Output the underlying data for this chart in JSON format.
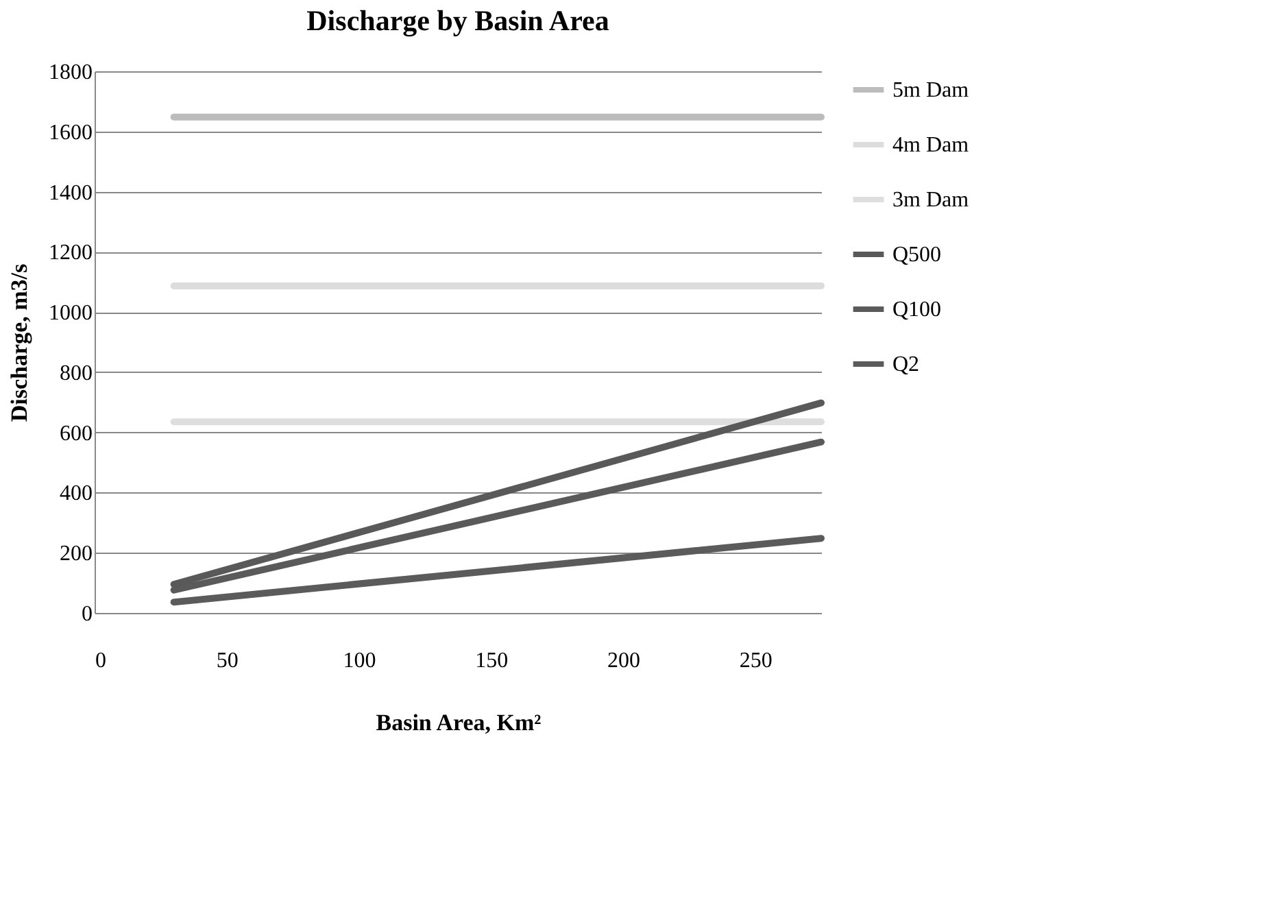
{
  "chart_data": {
    "type": "line",
    "title": "Discharge by Basin Area",
    "xlabel": "Basin Area, Km²",
    "ylabel": "Discharge, m3/s",
    "xlim": [
      0,
      275
    ],
    "xticks": [
      0,
      50,
      100,
      150,
      200,
      250
    ],
    "ylim": [
      0,
      1800
    ],
    "yticks": [
      0,
      200,
      400,
      600,
      800,
      1000,
      1200,
      1400,
      1600,
      1800
    ],
    "grid": "y",
    "legend": "right",
    "marker": "none",
    "line_style": "solid",
    "x": [
      30,
      275
    ],
    "series": [
      {
        "name": "5m Dam",
        "color": "#bcbcbc",
        "values": [
          1648,
          1648
        ]
      },
      {
        "name": "4m Dam",
        "color": "#dcdcdc",
        "values": [
          1087,
          1087
        ]
      },
      {
        "name": "3m Dam",
        "color": "#dedede",
        "values": [
          635,
          635
        ]
      },
      {
        "name": "Q500",
        "color": "#595959",
        "values": [
          95,
          698
        ]
      },
      {
        "name": "Q100",
        "color": "#5a5a5a",
        "values": [
          76,
          568
        ]
      },
      {
        "name": "Q2",
        "color": "#5b5b5b",
        "values": [
          36,
          248
        ]
      }
    ]
  }
}
